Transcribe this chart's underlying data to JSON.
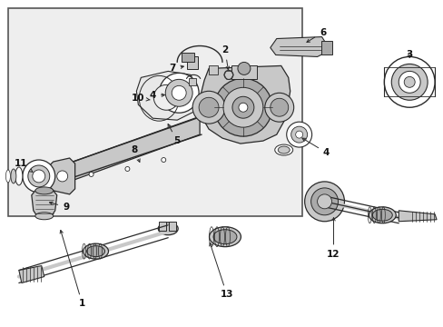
{
  "fig_width": 4.89,
  "fig_height": 3.6,
  "dpi": 100,
  "bg_color": "#ffffff",
  "lc": "#2a2a2a",
  "box_bg": "#eeeeee",
  "box_border": "#555555",
  "part_gray": "#c8c8c8",
  "mid_gray": "#aaaaaa",
  "dark_gray": "#888888"
}
